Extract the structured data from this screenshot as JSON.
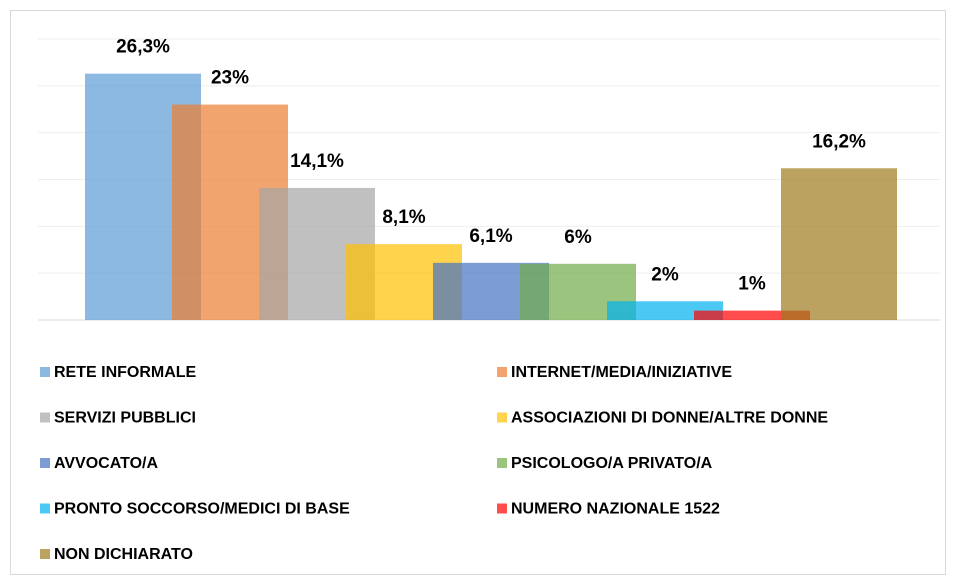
{
  "chart_data": {
    "type": "bar",
    "series": [
      {
        "name": "RETE INFORMALE",
        "color": "#5b9bd5",
        "values": [
          26.3
        ],
        "value_labels": [
          "26,3%"
        ]
      },
      {
        "name": "INTERNET/MEDIA/INIZIATIVE",
        "color": "#ed7d31",
        "values": [
          23
        ],
        "value_labels": [
          "23%"
        ]
      },
      {
        "name": "SERVIZI PUBBLICI",
        "color": "#a5a5a5",
        "values": [
          14.1
        ],
        "value_labels": [
          "14,1%"
        ]
      },
      {
        "name": "ASSOCIAZIONI DI DONNE/ALTRE DONNE",
        "color": "#ffc000",
        "values": [
          8.1
        ],
        "value_labels": [
          "8,1%"
        ]
      },
      {
        "name": "AVVOCATO/A",
        "color": "#4472c4",
        "values": [
          6.1
        ],
        "value_labels": [
          "6,1%"
        ]
      },
      {
        "name": "PSICOLOGO/A PRIVATO/A",
        "color": "#70ad47",
        "values": [
          6
        ],
        "value_labels": [
          "6%"
        ]
      },
      {
        "name": "PRONTO SOCCORSO/MEDICI DI BASE",
        "color": "#00b0f0",
        "values": [
          2
        ],
        "value_labels": [
          "2%"
        ]
      },
      {
        "name": "NUMERO NAZIONALE 1522",
        "color": "#ff0000",
        "values": [
          1
        ],
        "value_labels": [
          "1%"
        ]
      },
      {
        "name": "NON DICHIARATO",
        "color": "#9e7b1e",
        "values": [
          16.2
        ],
        "value_labels": [
          "16,2%"
        ]
      }
    ],
    "ylim": [
      0,
      30
    ],
    "yticks": [
      0,
      5,
      10,
      15,
      20,
      25,
      30
    ],
    "grid": true,
    "legend": "bottom"
  }
}
